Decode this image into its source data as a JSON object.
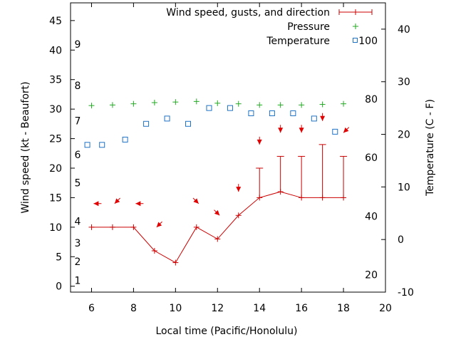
{
  "chart_data": {
    "type": "line",
    "xlabel": "Local time (Pacific/Honolulu)",
    "ylabel": "Wind speed (kt - Beaufort)",
    "y2label": "Temperature (C - F)",
    "xlim": [
      5,
      20
    ],
    "xticks": [
      6,
      8,
      10,
      12,
      14,
      16,
      18,
      20
    ],
    "ylim": [
      -1,
      48
    ],
    "yticks": [
      0,
      5,
      10,
      15,
      20,
      25,
      30,
      35,
      40,
      45
    ],
    "y2lim": [
      -10,
      45
    ],
    "y2ticks": [
      -10,
      0,
      10,
      20,
      30,
      40
    ],
    "beaufort": [
      {
        "label": "1",
        "y": 1
      },
      {
        "label": "2",
        "y": 4.2
      },
      {
        "label": "3",
        "y": 7.3
      },
      {
        "label": "4",
        "y": 11
      },
      {
        "label": "5",
        "y": 17.5
      },
      {
        "label": "6",
        "y": 22.3
      },
      {
        "label": "7",
        "y": 28
      },
      {
        "label": "8",
        "y": 34
      },
      {
        "label": "9",
        "y": 41
      }
    ],
    "fahrenheit": [
      {
        "label": "20",
        "y": -6.7
      },
      {
        "label": "40",
        "y": 4.4
      },
      {
        "label": "60",
        "y": 15.6
      },
      {
        "label": "80",
        "y": 26.7
      },
      {
        "label": "100",
        "y": 37.8
      }
    ],
    "legend": {
      "wind": "Wind speed, gusts, and direction",
      "pressure": "Pressure",
      "temperature": "Temperature"
    },
    "series": [
      {
        "name": "Wind speed",
        "x": [
          6,
          7,
          8,
          9,
          10,
          11,
          12,
          13,
          14,
          15,
          16,
          17,
          18
        ],
        "values": [
          10,
          10,
          10,
          6,
          4,
          10,
          8,
          12,
          15,
          16,
          15,
          15,
          15
        ]
      },
      {
        "name": "Gusts",
        "x": [
          14,
          15,
          16,
          17,
          18
        ],
        "values": [
          20,
          22,
          22,
          24,
          22
        ]
      },
      {
        "name": "Pressure",
        "x": [
          6,
          7,
          8,
          9,
          10,
          11,
          12,
          13,
          14,
          15,
          16,
          17,
          18
        ],
        "values": [
          30.6,
          30.7,
          30.9,
          31.1,
          31.2,
          31.3,
          31.0,
          30.9,
          30.7,
          30.7,
          30.7,
          30.8,
          30.9
        ]
      },
      {
        "name": "Temperature",
        "x": [
          5.8,
          6.5,
          7.6,
          8.6,
          9.6,
          10.6,
          11.6,
          12.6,
          13.6,
          14.6,
          15.6,
          16.6,
          17.6
        ],
        "values": [
          18,
          18,
          19,
          22,
          23,
          22,
          25,
          25,
          24,
          24,
          24,
          23,
          20.5
        ]
      }
    ],
    "arrows": [
      {
        "x": 6.1,
        "y": 14,
        "dir": "W"
      },
      {
        "x": 7.1,
        "y": 14,
        "dir": "SW"
      },
      {
        "x": 8.1,
        "y": 14,
        "dir": "W"
      },
      {
        "x": 9.1,
        "y": 10,
        "dir": "SW"
      },
      {
        "x": 11.1,
        "y": 14,
        "dir": "SE"
      },
      {
        "x": 12.1,
        "y": 12,
        "dir": "SE"
      },
      {
        "x": 13.0,
        "y": 16,
        "dir": "S"
      },
      {
        "x": 14.0,
        "y": 24,
        "dir": "S"
      },
      {
        "x": 15.0,
        "y": 26,
        "dir": "S"
      },
      {
        "x": 16.0,
        "y": 26,
        "dir": "S"
      },
      {
        "x": 17.0,
        "y": 28,
        "dir": "S"
      },
      {
        "x": 18.0,
        "y": 26,
        "dir": "SW"
      }
    ],
    "colors": {
      "wind": "#cc0000",
      "pressure": "#22aa22",
      "temperature": "#1e72c6",
      "arrow": "#e00000"
    }
  }
}
